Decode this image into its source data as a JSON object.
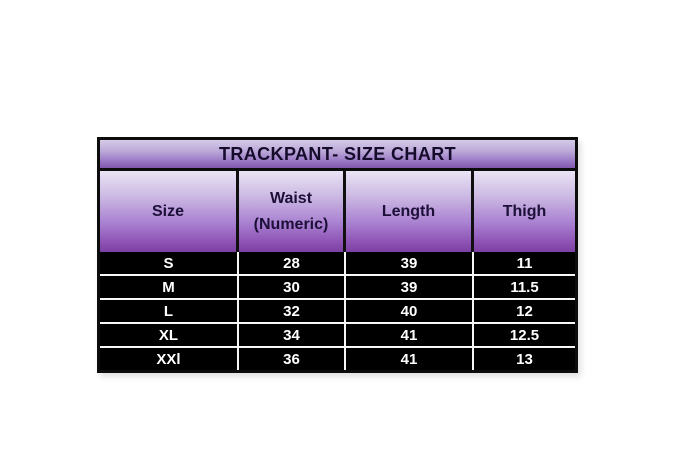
{
  "page": {
    "background": "#ffffff"
  },
  "colors": {
    "table_border": "#0c0c0c",
    "title_gradient_top": "#d5cbe7",
    "title_gradient_bottom": "#8157ae",
    "header_gradient_top": "#eae4f5",
    "header_gradient_bottom": "#7b41a2",
    "row_background": "#000000",
    "row_text": "#ffffff",
    "row_separator": "#f7f7f7",
    "header_text": "#1d1038",
    "title_text": "#150b2b"
  },
  "chart_data": {
    "type": "table",
    "title": "TRACKPANT- SIZE CHART",
    "columns": [
      "Size",
      "Waist (Numeric)",
      "Length",
      "Thigh"
    ],
    "rows": [
      [
        "S",
        28,
        39,
        11
      ],
      [
        "M",
        30,
        39,
        11.5
      ],
      [
        "L",
        32,
        40,
        12
      ],
      [
        "XL",
        34,
        41,
        12.5
      ],
      [
        "XXl",
        36,
        41,
        13
      ]
    ]
  }
}
